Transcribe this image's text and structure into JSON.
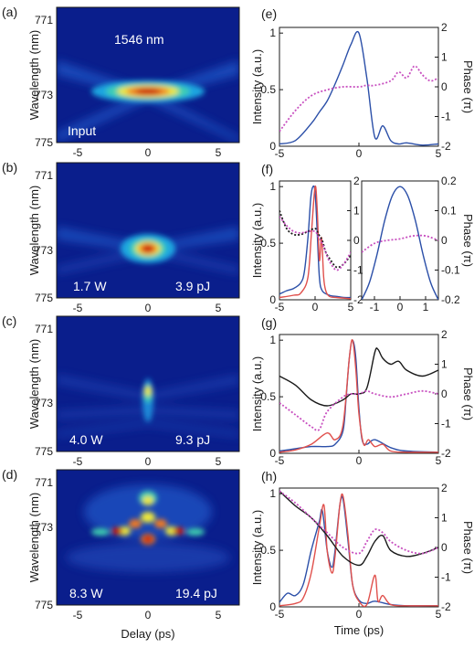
{
  "chart_data": [
    {
      "panel": "(a)",
      "type": "heatmap",
      "ylabel": "Wavelength (nm)",
      "xlabel": "",
      "xlim": [
        -6.5,
        6.5
      ],
      "ylim": [
        775,
        770
      ],
      "xticks": [
        "-5",
        "0",
        "5"
      ],
      "yticks": [
        "771",
        "773",
        "775"
      ],
      "annotations": [
        "1546 nm",
        "Input"
      ]
    },
    {
      "panel": "(b)",
      "type": "heatmap",
      "ylabel": "Wavelength (nm)",
      "xlabel": "",
      "xlim": [
        -6.5,
        6.5
      ],
      "ylim": [
        775,
        770
      ],
      "xticks": [
        "-5",
        "0",
        "5"
      ],
      "yticks": [
        "771",
        "773",
        "775"
      ],
      "annotations": [
        "1.7 W",
        "3.9 pJ"
      ]
    },
    {
      "panel": "(c)",
      "type": "heatmap",
      "ylabel": "Wavelength (nm)",
      "xlabel": "",
      "xlim": [
        -6.5,
        6.5
      ],
      "ylim": [
        775,
        770
      ],
      "xticks": [
        "-5",
        "0",
        "5"
      ],
      "yticks": [
        "771",
        "773",
        "775"
      ],
      "annotations": [
        "4.0 W",
        "9.3 pJ"
      ]
    },
    {
      "panel": "(d)",
      "type": "heatmap",
      "ylabel": "Wavelength (nm)",
      "xlabel": "Delay (ps)",
      "xlim": [
        -6.5,
        6.5
      ],
      "ylim": [
        775,
        770
      ],
      "xticks": [
        "-5",
        "0",
        "5"
      ],
      "yticks": [
        "771",
        "773",
        "775"
      ],
      "annotations": [
        "8.3 W",
        "19.4 pJ"
      ]
    },
    {
      "panel": "(e)",
      "type": "line",
      "ylabel": "Intensity (a.u.)",
      "ylabel_right": "Phase (π)",
      "xlim": [
        -5,
        5
      ],
      "ylim": [
        0,
        1.05
      ],
      "ylim_right": [
        -2,
        2
      ],
      "xticks": [
        "-5",
        "0",
        "5"
      ],
      "yticks": [
        "0",
        "0.5",
        "1"
      ],
      "yticks_right": [
        "-2",
        "-1",
        "0",
        "1",
        "2"
      ],
      "series": [
        {
          "axis": "left",
          "color": "#2b4fa8",
          "style": "solid",
          "x": [
            -5,
            -4,
            -3,
            -2.5,
            -2,
            -1.5,
            -1,
            -0.5,
            0,
            0.5,
            1,
            1.5,
            2,
            2.5,
            3,
            4,
            5
          ],
          "y": [
            0.02,
            0.05,
            0.2,
            0.3,
            0.4,
            0.55,
            0.72,
            0.9,
            1.0,
            0.6,
            0.08,
            0.18,
            0.05,
            0.02,
            0.03,
            0.01,
            0.02
          ]
        },
        {
          "axis": "right",
          "color": "#c850c0",
          "style": "dotted",
          "x": [
            -5,
            -4,
            -3,
            -2,
            -1,
            0,
            0.5,
            1,
            2,
            2.5,
            3,
            3.5,
            4,
            4.5,
            5
          ],
          "y": [
            -1.5,
            -0.8,
            -0.3,
            -0.1,
            0.0,
            0.0,
            0.05,
            0.05,
            0.2,
            0.5,
            0.3,
            0.7,
            0.4,
            0.2,
            0.3
          ]
        }
      ]
    },
    {
      "panel": "(f)",
      "type": "line",
      "ylabel": "Intensity (a.u.)",
      "xlim": [
        -5,
        5
      ],
      "ylim": [
        0,
        1.05
      ],
      "ylim_right": [
        -2,
        2
      ],
      "xticks": [
        "-5",
        "0",
        "5"
      ],
      "yticks": [
        "0",
        "0.5",
        "1"
      ],
      "yticks_right": [
        "-2",
        "-1",
        "0",
        "1",
        "2"
      ],
      "series": [
        {
          "axis": "left",
          "color": "#2b4fa8",
          "style": "solid",
          "x": [
            -5,
            -4,
            -3,
            -2,
            -1.5,
            -1,
            -0.6,
            -0.3,
            0,
            0.3,
            0.6,
            1,
            2,
            3,
            4,
            5
          ],
          "y": [
            0.05,
            0.08,
            0.1,
            0.15,
            0.25,
            0.55,
            0.9,
            1.0,
            0.95,
            0.6,
            0.2,
            0.08,
            0.04,
            0.03,
            0.02,
            0.02
          ]
        },
        {
          "axis": "left",
          "color": "#e0504c",
          "style": "solid",
          "x": [
            -5,
            -3,
            -2,
            -1,
            -0.5,
            0,
            0.3,
            0.6,
            0.9,
            1.2,
            1.5,
            2,
            3,
            5
          ],
          "y": [
            0.02,
            0.04,
            0.06,
            0.2,
            0.6,
            1.0,
            0.8,
            0.35,
            0.55,
            0.2,
            0.08,
            0.03,
            0.02,
            0.01
          ]
        },
        {
          "axis": "right",
          "color": "#1a1a1a",
          "style": "dotted",
          "x": [
            -5,
            -4,
            -3,
            -2,
            -1,
            0,
            0.5,
            1,
            1.5,
            2,
            3,
            4,
            5
          ],
          "y": [
            1.0,
            0.4,
            0.2,
            0.2,
            0.3,
            0.4,
            0.2,
            0.0,
            -0.4,
            -0.6,
            -0.9,
            -0.8,
            -0.5
          ]
        },
        {
          "axis": "right",
          "color": "#c850c0",
          "style": "dotted",
          "x": [
            -5,
            -4,
            -3,
            -2,
            -1,
            0,
            0.5,
            1,
            1.5,
            2,
            3,
            4,
            5
          ],
          "y": [
            0.8,
            0.5,
            0.3,
            0.25,
            0.3,
            0.3,
            0.1,
            -0.1,
            -0.4,
            -0.7,
            -1.0,
            -0.8,
            -0.4
          ]
        }
      ]
    },
    {
      "panel": "(f) inset",
      "type": "line",
      "ylabel_right": "Phase (π)",
      "xlim": [
        -1.5,
        1.5
      ],
      "ylim": [
        0,
        1.05
      ],
      "ylim_right": [
        -0.2,
        0.2
      ],
      "xticks": [
        "-1",
        "0",
        "1"
      ],
      "yticks_right": [
        "-0.2",
        "-0.1",
        "0",
        "0.1",
        "0.2"
      ],
      "series": [
        {
          "axis": "left",
          "color": "#2b4fa8",
          "style": "solid",
          "x": [
            -1.5,
            -1.2,
            -0.9,
            -0.6,
            -0.3,
            0,
            0.3,
            0.6,
            0.9,
            1.2,
            1.5
          ],
          "y": [
            0.0,
            0.15,
            0.4,
            0.7,
            0.92,
            1.0,
            0.92,
            0.7,
            0.4,
            0.15,
            0.0
          ]
        },
        {
          "axis": "right",
          "color": "#c850c0",
          "style": "dotted",
          "x": [
            -1.5,
            -1.0,
            -0.5,
            0,
            0.5,
            1.0,
            1.5
          ],
          "y": [
            -0.04,
            -0.01,
            0.0,
            0.005,
            0.015,
            0.015,
            0.0
          ]
        }
      ]
    },
    {
      "panel": "(g)",
      "type": "line",
      "ylabel": "Intensity (a.u.)",
      "ylabel_right": "Phase (π)",
      "xlim": [
        -5,
        5
      ],
      "ylim": [
        0,
        1.05
      ],
      "ylim_right": [
        -2,
        2
      ],
      "xticks": [
        "-5",
        "0",
        "5"
      ],
      "yticks": [
        "0",
        "0.5",
        "1"
      ],
      "yticks_right": [
        "-2",
        "-1",
        "0",
        "1",
        "2"
      ],
      "series": [
        {
          "axis": "left",
          "color": "#2b4fa8",
          "style": "solid",
          "x": [
            -5,
            -4,
            -3,
            -2,
            -1.5,
            -1,
            -0.8,
            -0.6,
            -0.4,
            -0.2,
            0,
            0.2,
            0.5,
            1,
            2,
            3,
            5
          ],
          "y": [
            0.02,
            0.04,
            0.06,
            0.06,
            0.08,
            0.2,
            0.5,
            0.85,
            1.0,
            0.85,
            0.4,
            0.12,
            0.08,
            0.12,
            0.05,
            0.02,
            0.01
          ]
        },
        {
          "axis": "left",
          "color": "#e0504c",
          "style": "solid",
          "x": [
            -5,
            -4,
            -3,
            -2,
            -1.5,
            -1,
            -0.6,
            -0.4,
            -0.2,
            0,
            0.3,
            0.6,
            1,
            1.5,
            2,
            3,
            5
          ],
          "y": [
            0.01,
            0.03,
            0.08,
            0.18,
            0.12,
            0.25,
            0.85,
            1.0,
            0.75,
            0.35,
            0.08,
            0.12,
            0.06,
            0.08,
            0.02,
            0.01,
            0.01
          ]
        },
        {
          "axis": "right",
          "color": "#1a1a1a",
          "style": "solid",
          "x": [
            -5,
            -4,
            -3,
            -2,
            -1,
            -0.5,
            0,
            0.5,
            1,
            1.2,
            1.5,
            2,
            2.5,
            3,
            4,
            5
          ],
          "y": [
            0.6,
            0.3,
            -0.2,
            -0.4,
            -0.2,
            0.0,
            0.0,
            0.2,
            1.4,
            1.5,
            1.2,
            1.0,
            1.1,
            0.8,
            0.6,
            0.8
          ]
        },
        {
          "axis": "right",
          "color": "#c850c0",
          "style": "dotted",
          "x": [
            -5,
            -4,
            -3,
            -2.5,
            -2,
            -1,
            -0.5,
            0,
            0.5,
            1,
            2,
            3,
            4,
            5
          ],
          "y": [
            -0.3,
            -0.7,
            -1.1,
            -1.2,
            -0.6,
            -0.1,
            0.0,
            0.0,
            0.1,
            0.0,
            -0.1,
            0.0,
            0.1,
            0.0
          ]
        }
      ]
    },
    {
      "panel": "(h)",
      "type": "line",
      "ylabel": "Intensity (a.u.)",
      "ylabel_right": "Phase (π)",
      "xlabel": "Time (ps)",
      "xlim": [
        -5,
        5
      ],
      "ylim": [
        0,
        1.05
      ],
      "ylim_right": [
        -2,
        2
      ],
      "xticks": [
        "-5",
        "0",
        "5"
      ],
      "yticks": [
        "0",
        "0.5",
        "1"
      ],
      "yticks_right": [
        "-2",
        "-1",
        "0",
        "1",
        "2"
      ],
      "series": [
        {
          "axis": "left",
          "color": "#2b4fa8",
          "style": "solid",
          "x": [
            -5,
            -4.5,
            -4,
            -3.5,
            -3,
            -2.5,
            -2.3,
            -2,
            -1.7,
            -1.5,
            -1.2,
            -1,
            -0.7,
            -0.4,
            0,
            0.5,
            1,
            2,
            3,
            5
          ],
          "y": [
            0.04,
            0.12,
            0.1,
            0.2,
            0.5,
            0.75,
            0.85,
            0.5,
            0.35,
            0.5,
            0.9,
            0.95,
            0.6,
            0.2,
            0.06,
            0.03,
            0.05,
            0.02,
            0.01,
            0.01
          ]
        },
        {
          "axis": "left",
          "color": "#e0504c",
          "style": "solid",
          "x": [
            -5,
            -4,
            -3.5,
            -3,
            -2.5,
            -2.2,
            -2,
            -1.7,
            -1.5,
            -1.2,
            -1,
            -0.7,
            -0.4,
            0,
            0.5,
            1,
            1.2,
            1.5,
            2,
            3,
            5
          ],
          "y": [
            0.01,
            0.03,
            0.08,
            0.3,
            0.7,
            0.9,
            0.5,
            0.3,
            0.45,
            0.9,
            0.98,
            0.65,
            0.2,
            0.05,
            0.02,
            0.28,
            0.05,
            0.1,
            0.02,
            0.01,
            0.01
          ]
        },
        {
          "axis": "right",
          "color": "#1a1a1a",
          "style": "solid",
          "x": [
            -5,
            -4,
            -3,
            -2,
            -1,
            0,
            0.5,
            1,
            1.5,
            2,
            3,
            4,
            5
          ],
          "y": [
            1.9,
            1.4,
            1.0,
            0.4,
            -0.3,
            -0.6,
            -0.3,
            0.2,
            0.4,
            -0.1,
            -0.3,
            -0.2,
            0.0
          ]
        },
        {
          "axis": "right",
          "color": "#c850c0",
          "style": "dotted",
          "x": [
            -5,
            -4,
            -3,
            -2,
            -1,
            0,
            0.5,
            1,
            1.5,
            2,
            3,
            4,
            5
          ],
          "y": [
            1.9,
            1.5,
            1.0,
            0.5,
            0.0,
            -0.2,
            0.2,
            0.6,
            0.5,
            0.2,
            -0.1,
            -0.2,
            0.0
          ]
        }
      ]
    }
  ]
}
